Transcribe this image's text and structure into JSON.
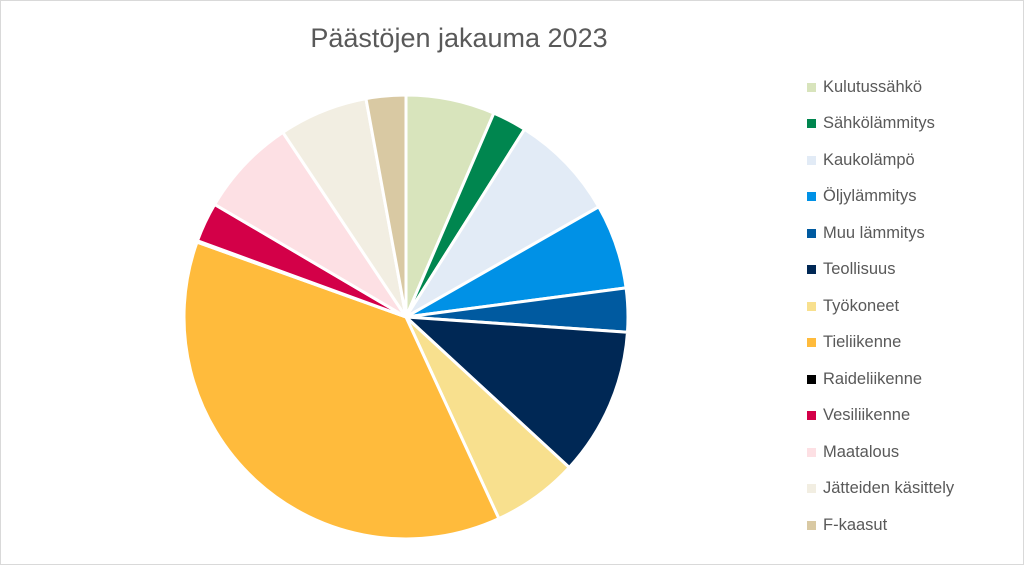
{
  "chart_data": {
    "type": "pie",
    "title": "Päästöjen jakauma 2023",
    "legend_position": "right",
    "slices": [
      {
        "label": "Kulutussähkö",
        "value": 6.5,
        "color": "#d8e4bc"
      },
      {
        "label": "Sähkölämmitys",
        "value": 2.5,
        "color": "#00864f"
      },
      {
        "label": "Kaukolämpö",
        "value": 7.8,
        "color": "#e2ebf6"
      },
      {
        "label": "Öljylämmitys",
        "value": 6.2,
        "color": "#0091e6"
      },
      {
        "label": "Muu lämmitys",
        "value": 3.2,
        "color": "#005aa0"
      },
      {
        "label": "Teollisuus",
        "value": 10.8,
        "color": "#002855"
      },
      {
        "label": "Työkoneet",
        "value": 6.3,
        "color": "#f8e08e"
      },
      {
        "label": "Tieliikenne",
        "value": 37.5,
        "color": "#ffbb3c"
      },
      {
        "label": "Raideliikenne",
        "value": 0.1,
        "color": "#000000"
      },
      {
        "label": "Vesiliikenne",
        "value": 2.9,
        "color": "#d30048"
      },
      {
        "label": "Maatalous",
        "value": 7.2,
        "color": "#fde0e4"
      },
      {
        "label": "Jätteiden käsittely",
        "value": 6.5,
        "color": "#f2eee2"
      },
      {
        "label": "F-kaasut",
        "value": 2.9,
        "color": "#d9c9a3"
      }
    ]
  }
}
